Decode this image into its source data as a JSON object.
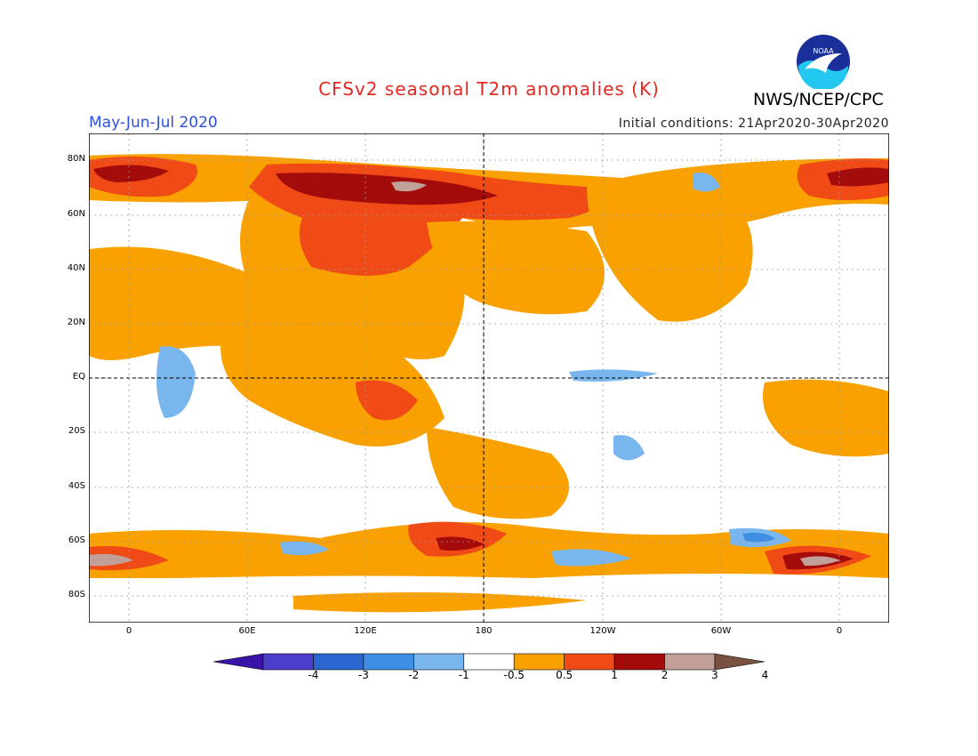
{
  "title": "CFSv2 seasonal T2m anomalies (K)",
  "period": "May-Jun-Jul 2020",
  "initial_conditions": "Initial conditions: 21Apr2020-30Apr2020",
  "organization": "NWS/NCEP/CPC",
  "logo_text": "NOAA",
  "colors": {
    "title": "#e8281e",
    "period": "#2b4fe0",
    "white": "#ffffff",
    "orange": "#f8a100",
    "redorange": "#f04a16",
    "red": "#e02010",
    "darkred": "#a40b0b",
    "tan": "#c0a098",
    "lightblue": "#79b6ee",
    "blue": "#3e8fe4",
    "medblue": "#2a66d0",
    "darkblue": "#3a28b8"
  },
  "latitude_labels": [
    "80N",
    "60N",
    "40N",
    "20N",
    "EQ",
    "20S",
    "40S",
    "60S",
    "80S"
  ],
  "longitude_labels": [
    "0",
    "60E",
    "120E",
    "180",
    "120W",
    "60W",
    "0"
  ],
  "colorbar": {
    "labels": [
      "-4",
      "-3",
      "-2",
      "-1",
      "-0.5",
      "0.5",
      "1",
      "2",
      "3",
      "4"
    ],
    "colors": [
      "#3a14a8",
      "#4b3ec8",
      "#2a66d0",
      "#3e8fe4",
      "#79b6ee",
      "#ffffff",
      "#f8a100",
      "#f04a16",
      "#a40b0b",
      "#c0a098",
      "#7a5040"
    ]
  }
}
